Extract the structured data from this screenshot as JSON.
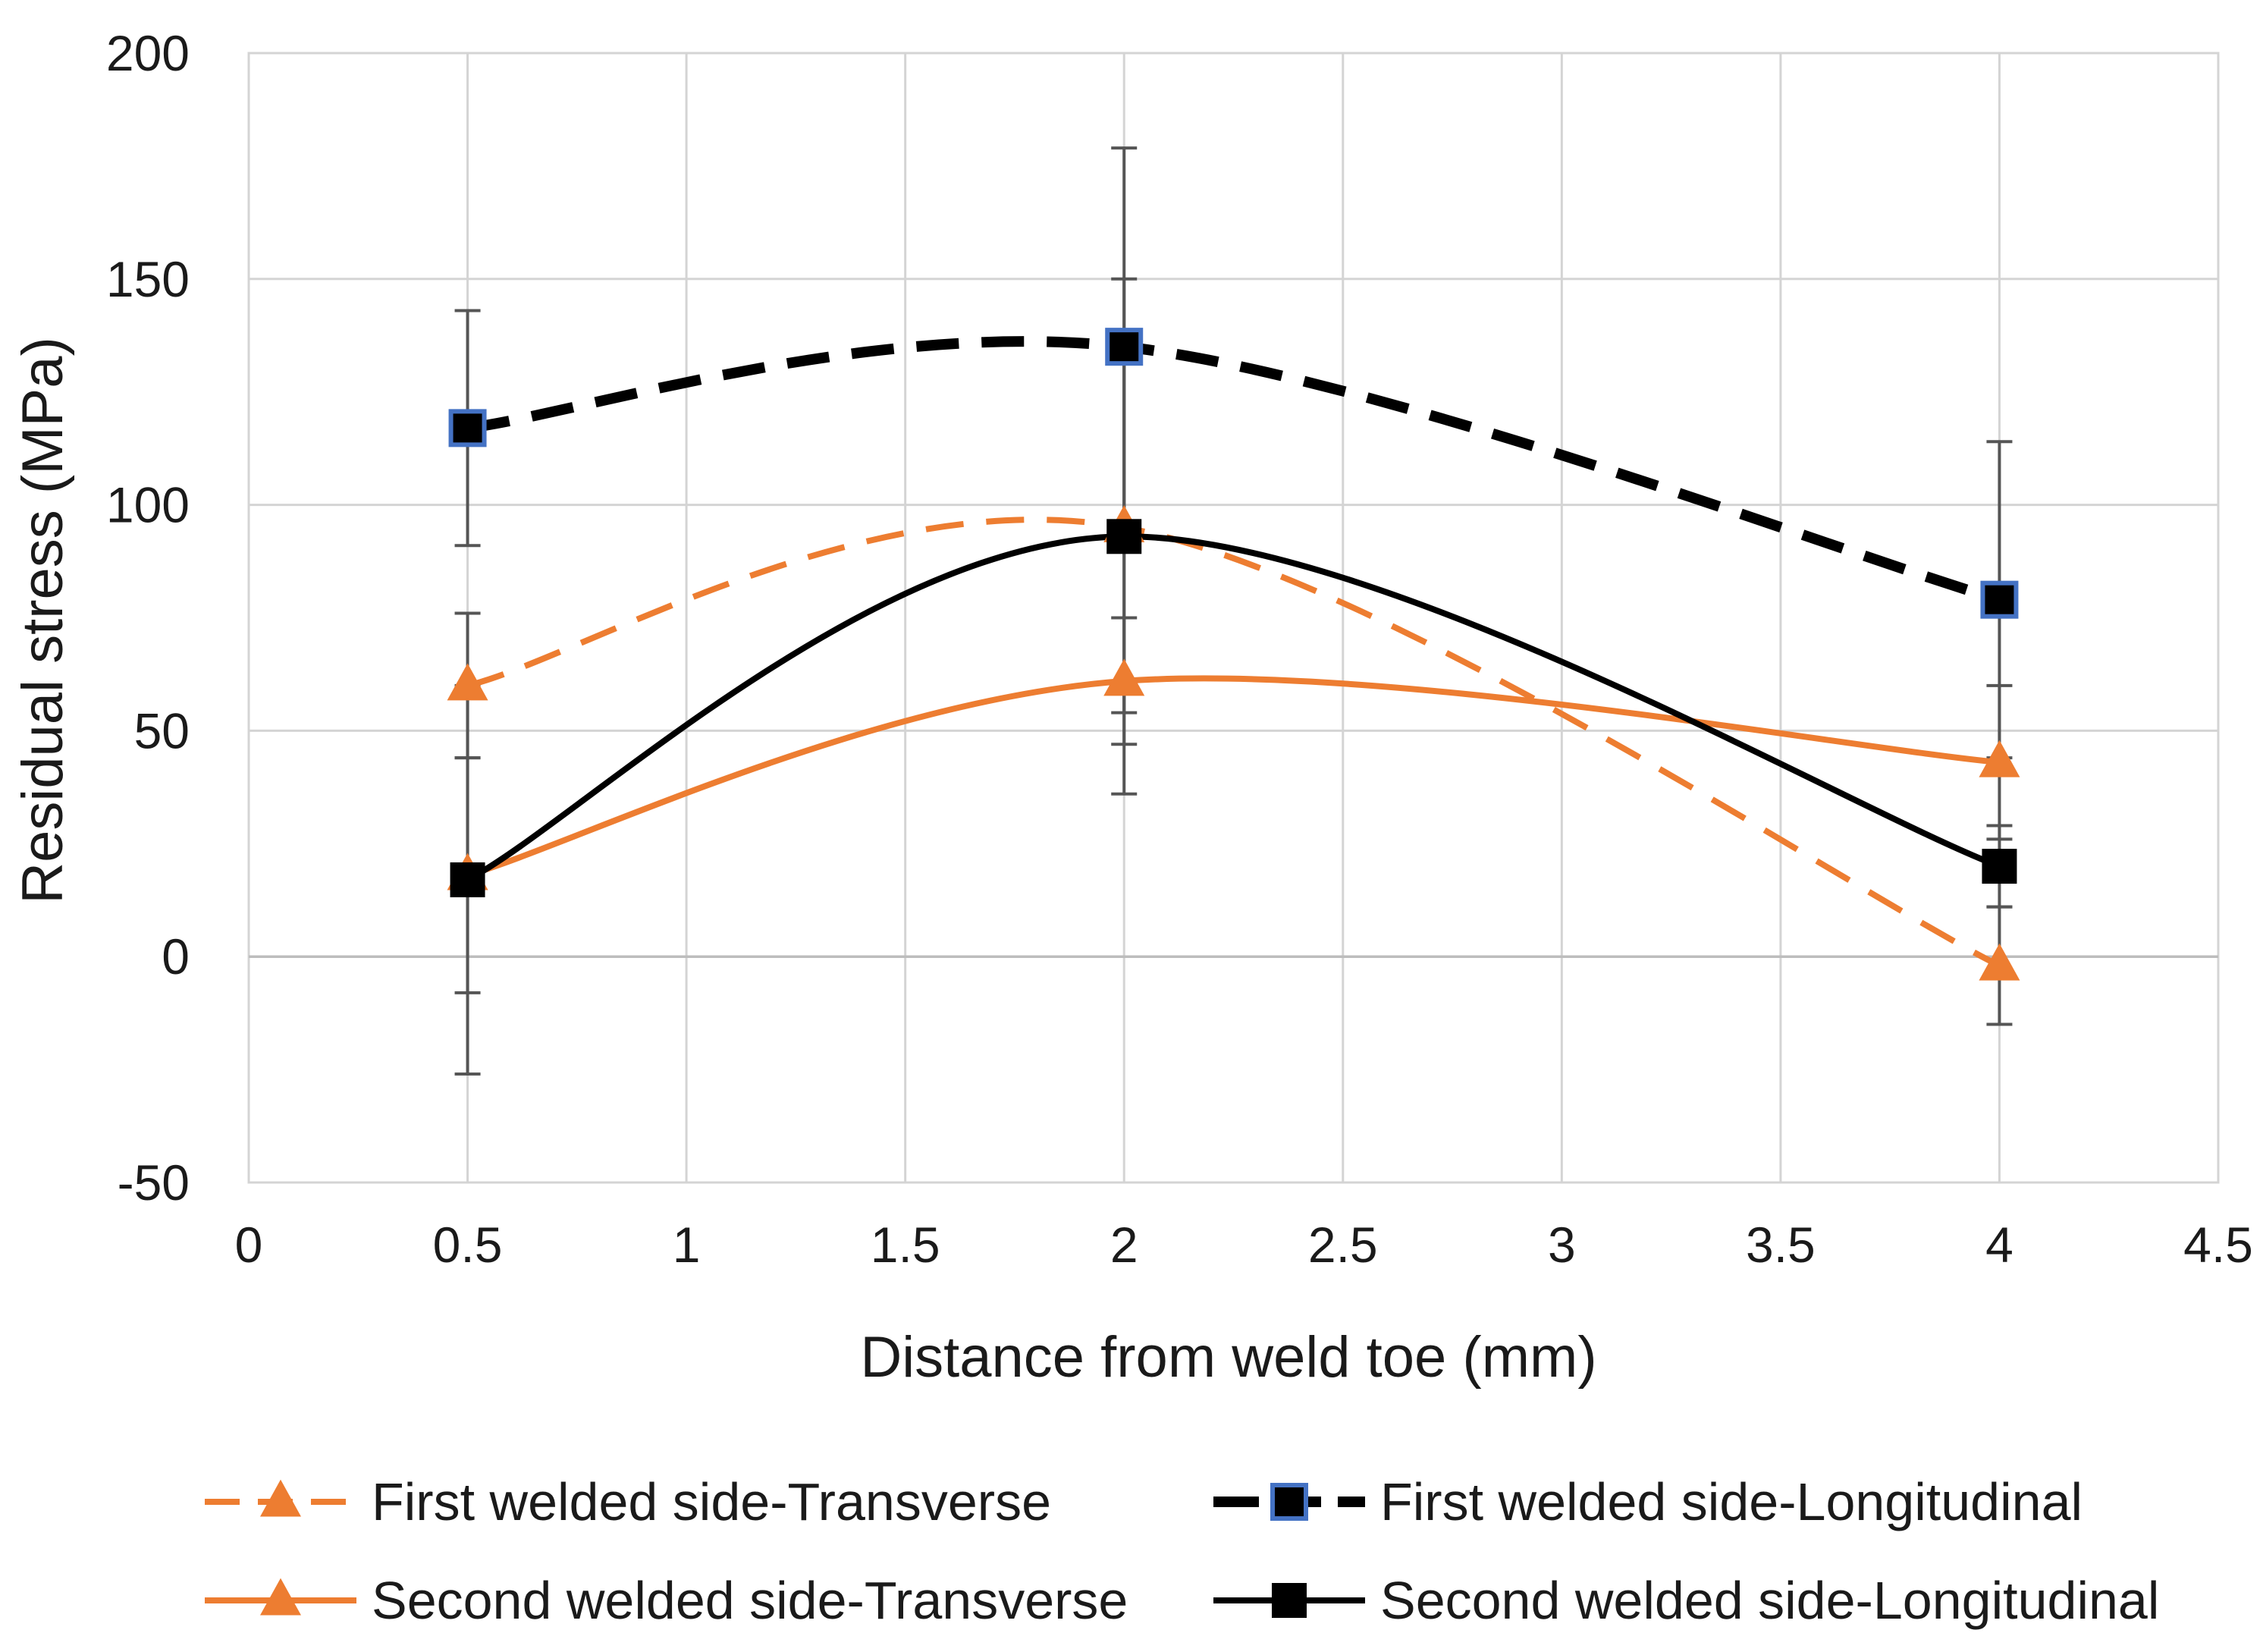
{
  "chart_data": {
    "type": "line",
    "title": "",
    "xlabel": "Distance from weld toe (mm)",
    "ylabel": "Residual stress (MPa)",
    "xlim": [
      0,
      4.5
    ],
    "ylim": [
      -50,
      200
    ],
    "x_ticks": [
      "0",
      "0.5",
      "1",
      "1.5",
      "2",
      "2.5",
      "3",
      "3.5",
      "4",
      "4.5"
    ],
    "y_ticks": [
      "-50",
      "0",
      "50",
      "100",
      "150",
      "200"
    ],
    "grid": true,
    "legend_position": "bottom",
    "x": [
      0.5,
      2,
      4
    ],
    "series": [
      {
        "name": "First welded side-Transverse",
        "values": [
          60,
          95,
          -2
        ],
        "error_low": [
          44,
          54,
          -15
        ],
        "error_high": [
          76,
          136,
          11
        ],
        "color": "#ED7D31",
        "line": "dashed",
        "marker": "triangle"
      },
      {
        "name": "Second welded side-Transverse",
        "values": [
          18,
          61,
          43
        ],
        "error_low": [
          -8,
          47,
          26
        ],
        "error_high": [
          44,
          75,
          60
        ],
        "color": "#ED7D31",
        "line": "solid",
        "marker": "triangle"
      },
      {
        "name": "First welded side-Longitudinal",
        "values": [
          117,
          135,
          79
        ],
        "error_low": [
          91,
          91,
          44
        ],
        "error_high": [
          143,
          179,
          114
        ],
        "color": "#000000",
        "line": "dashed",
        "marker": "square-blue-edge"
      },
      {
        "name": "Second welded side-Longitudinal",
        "values": [
          17,
          93,
          20
        ],
        "error_low": [
          -26,
          36,
          11
        ],
        "error_high": [
          60,
          150,
          29
        ],
        "color": "#000000",
        "line": "solid",
        "marker": "square"
      }
    ]
  }
}
